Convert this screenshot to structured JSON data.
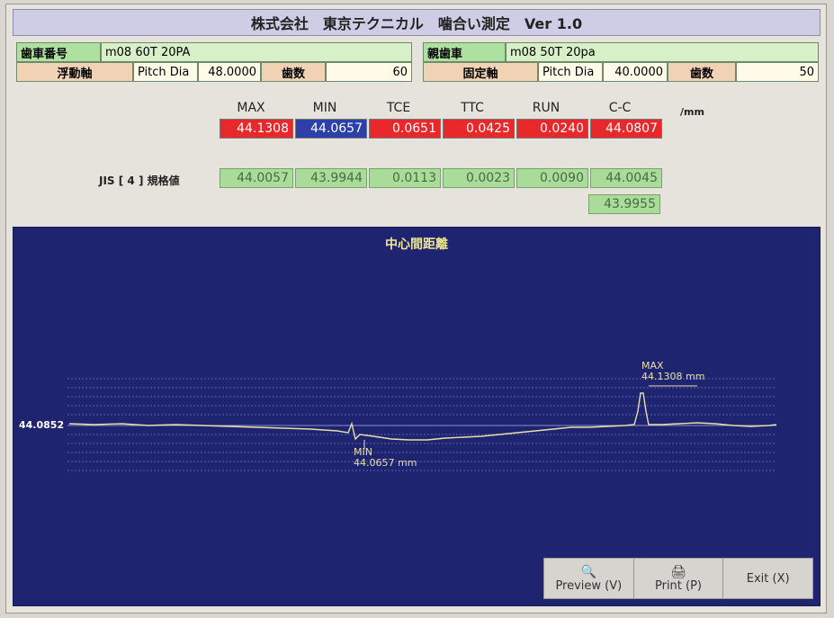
{
  "window": {
    "title": "株式会社　東京テクニカル　噛合い測定　Ver 1.0"
  },
  "gear_info": {
    "floating": {
      "gear_label": "歯車番号",
      "gear_value": "m08 60T  20PA",
      "axis_label": "浮動軸",
      "pitch_label": "Pitch Dia",
      "pitch_value": "48.0000",
      "teeth_label": "歯数",
      "teeth_value": "60"
    },
    "fixed": {
      "gear_label": "親歯車",
      "gear_value": "m08 50T 20pa",
      "axis_label": "固定軸",
      "pitch_label": "Pitch Dia",
      "pitch_value": "40.0000",
      "teeth_label": "歯数",
      "teeth_value": "50"
    }
  },
  "results": {
    "headers": [
      "MAX",
      "MIN",
      "TCE",
      "TTC",
      "RUN",
      "C-C"
    ],
    "unit": "/mm",
    "measured": [
      "44.1308",
      "44.0657",
      "0.0651",
      "0.0425",
      "0.0240",
      "44.0807"
    ],
    "measured_colors": [
      "red",
      "blue",
      "red",
      "red",
      "red",
      "red"
    ],
    "spec_label": "JIS [ 4 ] 規格値",
    "spec": [
      "44.0057",
      "43.9944",
      "0.0113",
      "0.0023",
      "0.0090",
      "44.0045"
    ],
    "spec_cc_lower": "43.9955"
  },
  "chart": {
    "title": "中心間距離",
    "center_label": "44.0852",
    "max_text": "MAX",
    "max_value": "44.1308 mm",
    "min_text": "MIN",
    "min_value": "44.0657 mm"
  },
  "chart_data": {
    "type": "line",
    "title": "中心間距離",
    "xlabel": "",
    "ylabel": "",
    "center": 44.0852,
    "max": 44.1308,
    "min": 44.0657,
    "grid": true
  },
  "buttons": {
    "preview": "Preview (V)",
    "print": "Print (P)",
    "exit": "Exit (X)"
  },
  "colors": {
    "chart_bg": "#1f2470",
    "trace": "#e6e0a8",
    "measured_red": "#e8282a",
    "measured_blue": "#2d3fa8",
    "spec_green": "#a8dc98"
  }
}
